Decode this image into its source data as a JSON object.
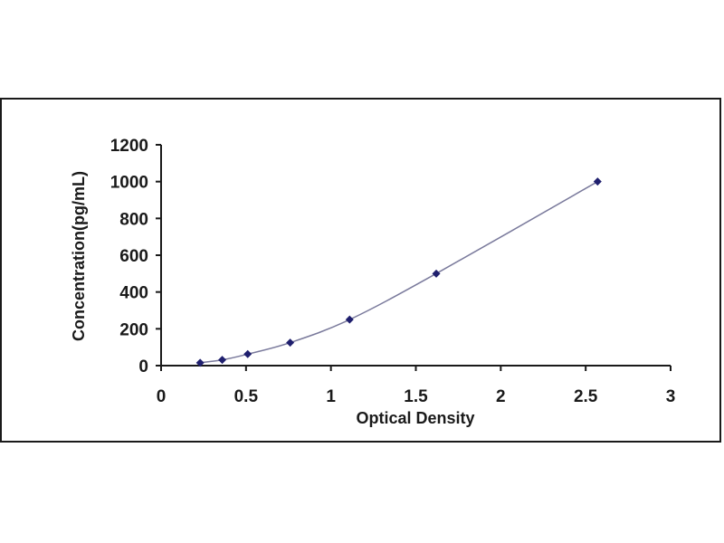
{
  "chart_data": {
    "type": "scatter",
    "title": "",
    "xlabel": "Optical Density",
    "ylabel": "Concentration(pg/mL)",
    "xlim": [
      0,
      3
    ],
    "ylim": [
      0,
      1200
    ],
    "x_ticks": [
      "0",
      "0.5",
      "1",
      "1.5",
      "2",
      "2.5",
      "3"
    ],
    "x_tick_values": [
      0,
      0.5,
      1,
      1.5,
      2,
      2.5,
      3
    ],
    "y_ticks": [
      "0",
      "200",
      "400",
      "600",
      "800",
      "1000",
      "1200"
    ],
    "y_tick_values": [
      0,
      200,
      400,
      600,
      800,
      1000,
      1200
    ],
    "grid": false,
    "legend": "none",
    "series": [
      {
        "points": [
          {
            "x": 0.23,
            "y": 15.6
          },
          {
            "x": 0.36,
            "y": 31.2
          },
          {
            "x": 0.51,
            "y": 62.5
          },
          {
            "x": 0.76,
            "y": 125
          },
          {
            "x": 1.11,
            "y": 250
          },
          {
            "x": 1.62,
            "y": 500
          },
          {
            "x": 2.57,
            "y": 1000
          }
        ],
        "fit": "smooth curve",
        "marker": "diamond",
        "marker_color": "#1f1f6e",
        "line_color": "#7a7a9c"
      }
    ]
  }
}
